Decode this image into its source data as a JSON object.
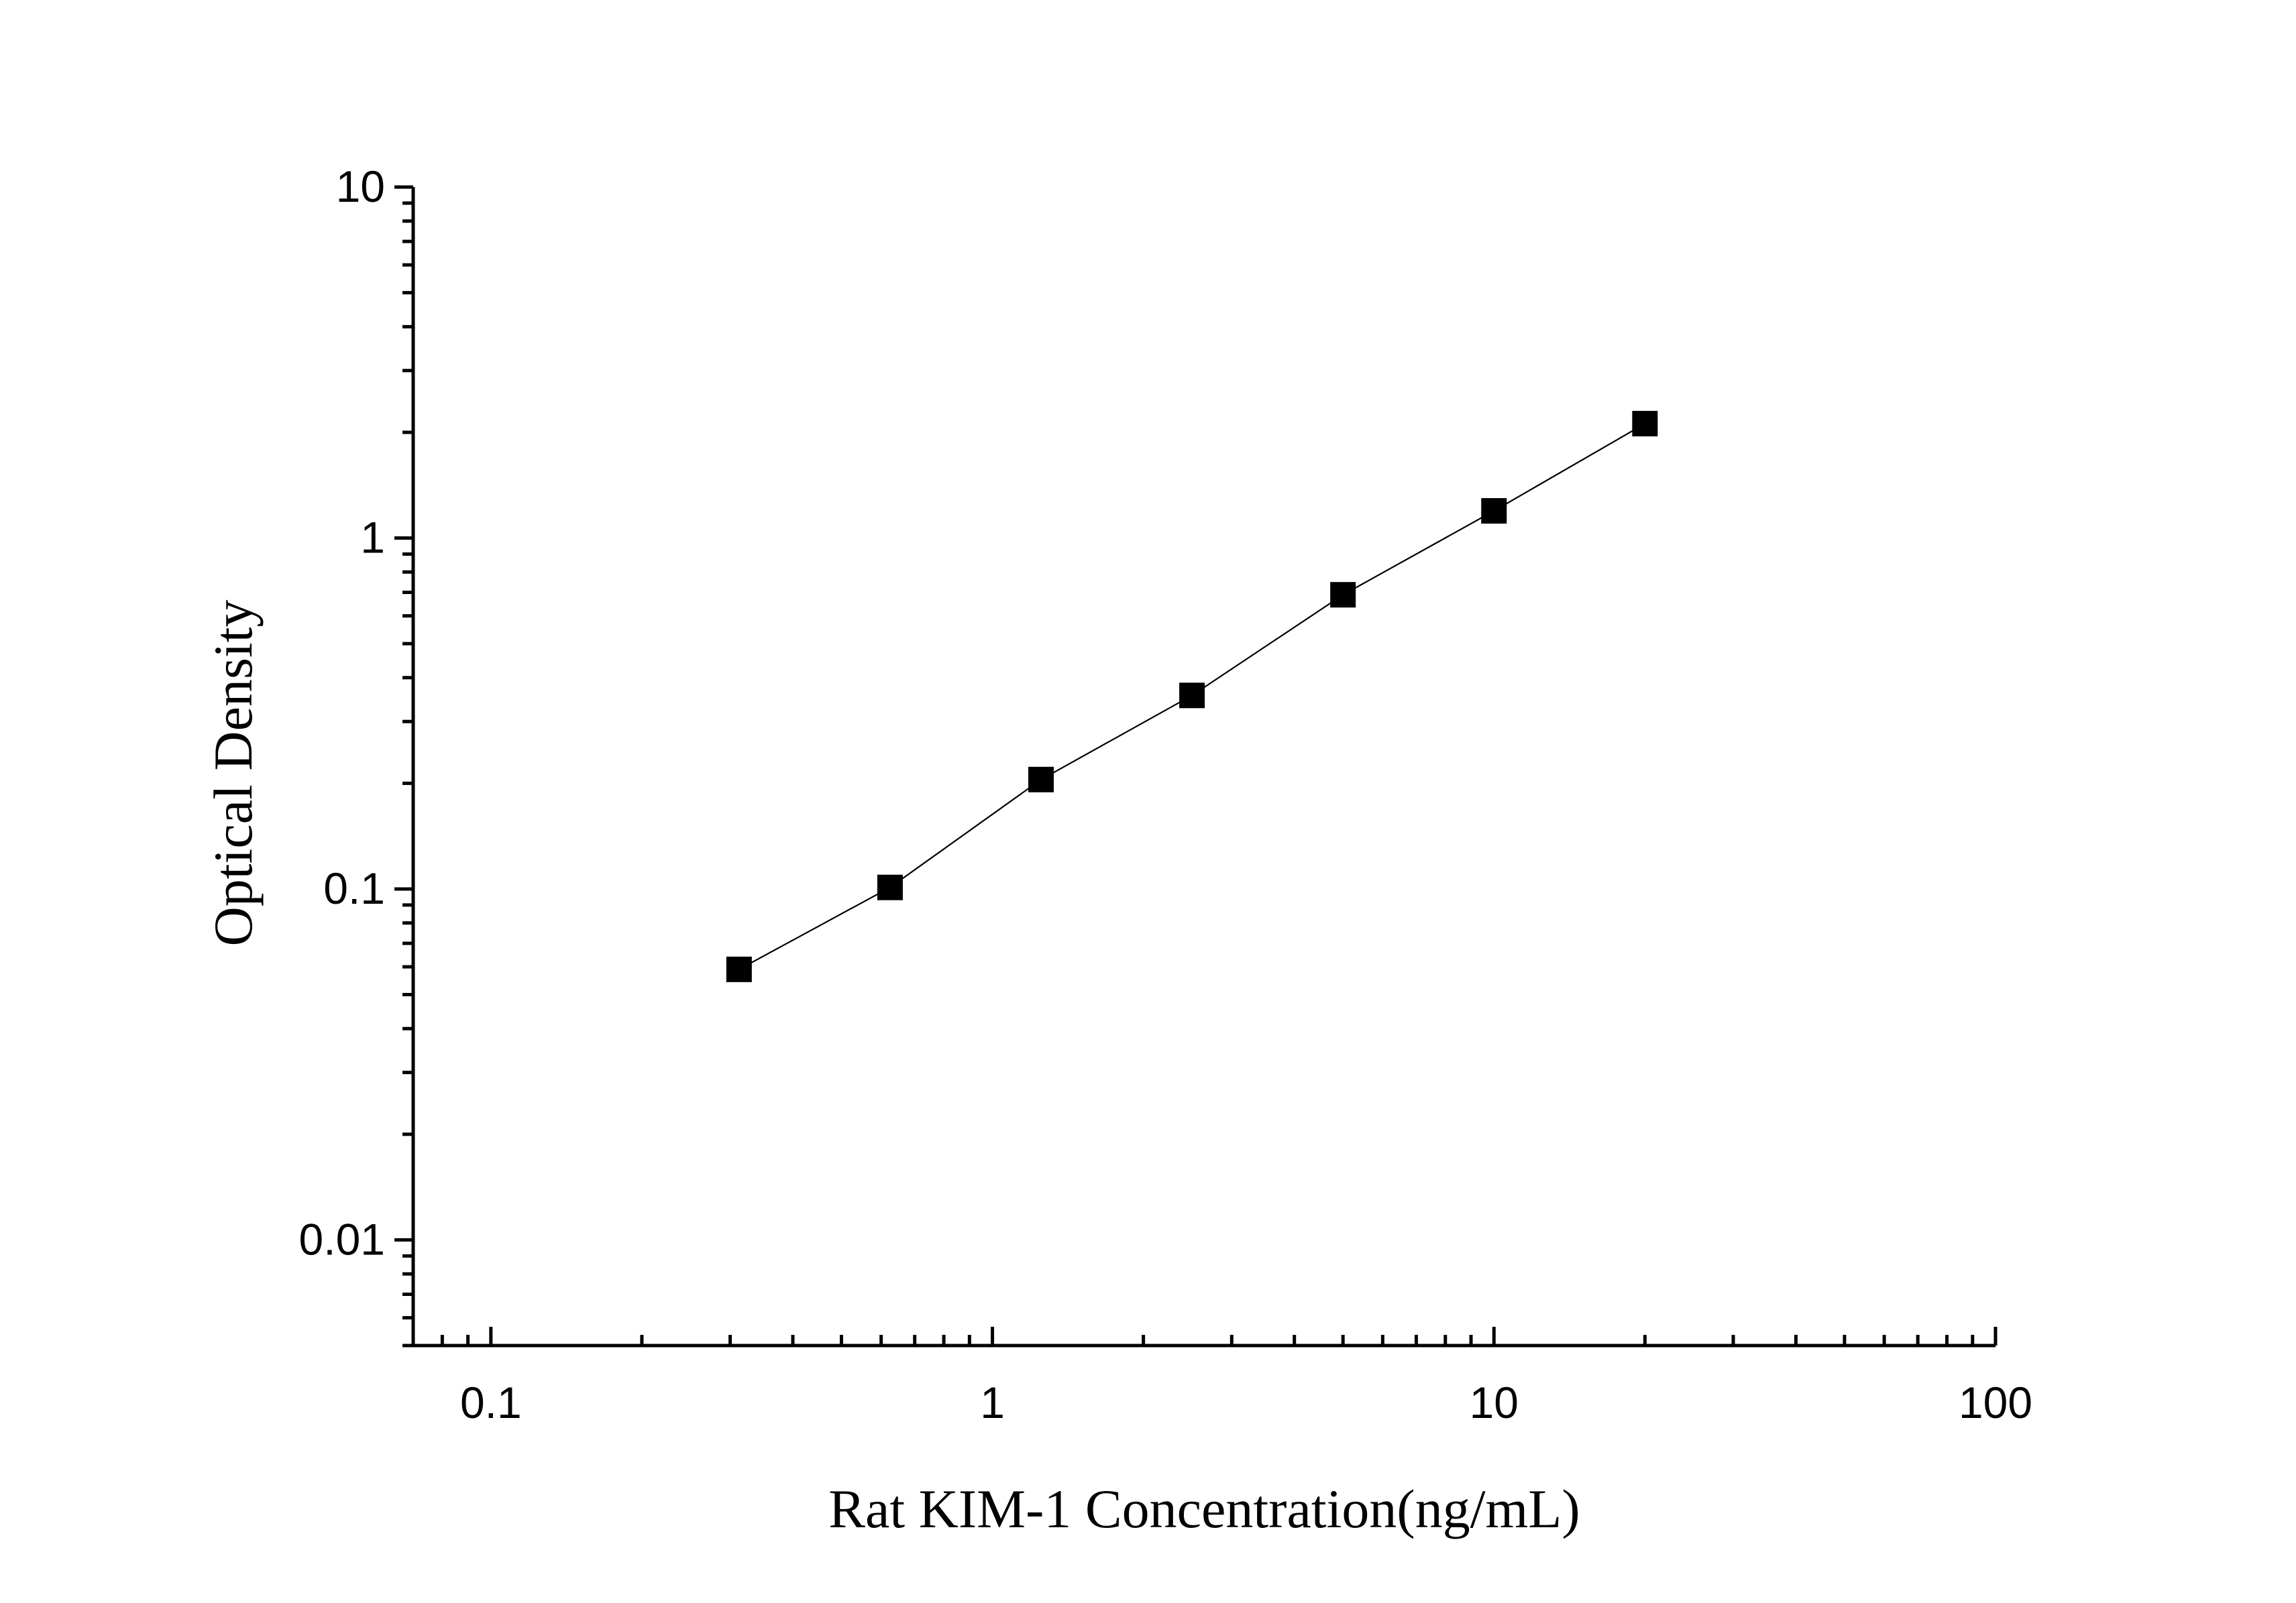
{
  "chart_data": {
    "type": "scatter",
    "xlabel": "Rat KIM-1 Concentration(ng/mL)",
    "ylabel": "Optical Density",
    "x_scale": "log",
    "y_scale": "log",
    "xlim": [
      0.07,
      100
    ],
    "ylim": [
      0.005,
      10
    ],
    "x_ticks": [
      0.1,
      1,
      10,
      100
    ],
    "x_tick_labels": [
      "0.1",
      "1",
      "10",
      "100"
    ],
    "y_ticks": [
      0.01,
      0.1,
      1,
      10
    ],
    "y_tick_labels": [
      "0.01",
      "0.1",
      "1",
      "10"
    ],
    "grid": false,
    "marker": "square",
    "fit_line": true,
    "color": "#000000",
    "series": [
      {
        "x": [
          0.3125,
          0.625,
          1.25,
          2.5,
          5,
          10,
          20
        ],
        "y": [
          0.059,
          0.101,
          0.205,
          0.356,
          0.689,
          1.195,
          2.118
        ]
      }
    ]
  }
}
